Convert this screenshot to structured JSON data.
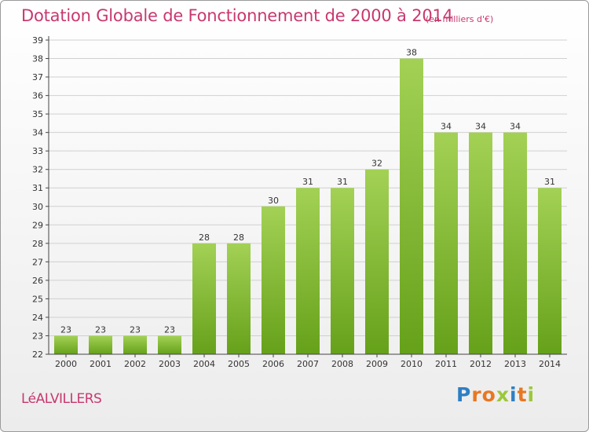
{
  "title": "Dotation Globale de Fonctionnement de 2000 à 2014",
  "unit_note": "(en milliers d'€)",
  "commune": "LéALVILLERS",
  "logo": {
    "text": "Proxiti",
    "letter_colors": [
      "#2e7fc4",
      "#e87722",
      "#e87722",
      "#9bc83a",
      "#2e7fc4",
      "#e87722",
      "#9bc83a"
    ]
  },
  "colors": {
    "title": "#c8386f",
    "bar_light": "#a3d155",
    "bar_dark": "#66a11a",
    "grid": "#d0d0d0",
    "axis": "#444444"
  },
  "chart_data": {
    "type": "bar",
    "title": "Dotation Globale de Fonctionnement de 2000 à 2014",
    "xlabel": "",
    "ylabel": "",
    "categories": [
      "2000",
      "2001",
      "2002",
      "2003",
      "2004",
      "2005",
      "2006",
      "2007",
      "2008",
      "2009",
      "2010",
      "2011",
      "2012",
      "2013",
      "2014"
    ],
    "values": [
      23,
      23,
      23,
      23,
      28,
      28,
      30,
      31,
      31,
      32,
      38,
      34,
      34,
      34,
      31
    ],
    "ylim": [
      22,
      39
    ],
    "yticks": [
      22,
      23,
      24,
      25,
      26,
      27,
      28,
      29,
      30,
      31,
      32,
      33,
      34,
      35,
      36,
      37,
      38,
      39
    ],
    "grid": true,
    "data_labels": true
  }
}
